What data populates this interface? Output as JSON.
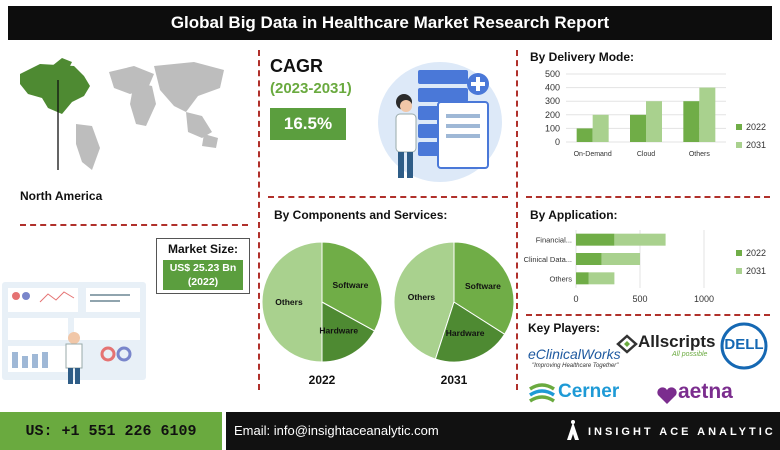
{
  "header": {
    "title": "Global Big Data in Healthcare Market Research Report"
  },
  "region": {
    "label": "North America"
  },
  "market_size": {
    "label": "Market Size:",
    "value": "US$ 25.23 Bn",
    "year": "(2022)"
  },
  "cagr": {
    "label": "CAGR",
    "period": "(2023-2031)",
    "value": "16.5%"
  },
  "colors": {
    "dark_green": "#4e8a32",
    "mid_green": "#70ad47",
    "light_green": "#a9d18e",
    "accent_red": "#b0302b"
  },
  "key_players": {
    "title": "Key Players:",
    "names": [
      "eClinicalWorks",
      "Allscripts",
      "DELL",
      "Cerner",
      "aetna"
    ],
    "taglines": {
      "eclinical": "\"Improving Healthcare Together\"",
      "allscripts": "All possible"
    }
  },
  "footer": {
    "phone": "US: +1 551 226 6109",
    "email": "Email: info@insightaceanalytic.com",
    "brand": "INSIGHT ACE ANALYTIC"
  },
  "chart_data": [
    {
      "type": "bar",
      "title": "By Delivery Mode:",
      "categories": [
        "On-Demand",
        "Cloud",
        "Others"
      ],
      "series": [
        {
          "name": "2022",
          "values": [
            100,
            200,
            300
          ]
        },
        {
          "name": "2031",
          "values": [
            200,
            300,
            400
          ]
        }
      ],
      "ylim": [
        0,
        500
      ],
      "yticks": [
        "0",
        "100",
        "200",
        "300",
        "400",
        "500"
      ],
      "legend": "right"
    },
    {
      "type": "bar",
      "orientation": "horizontal",
      "title": "By Application:",
      "categories": [
        "Financial...",
        "Clinical Data...",
        "Others"
      ],
      "series": [
        {
          "name": "2022",
          "values": [
            300,
            200,
            100
          ]
        },
        {
          "name": "2031",
          "values": [
            400,
            300,
            200
          ]
        }
      ],
      "xlim": [
        0,
        1000
      ],
      "xticks": [
        "0",
        "500",
        "1000"
      ],
      "legend": "right"
    },
    {
      "type": "pie",
      "title": "By Components and Services:",
      "year": "2022",
      "slices": [
        {
          "label": "Others",
          "value": 50
        },
        {
          "label": "Hardware",
          "value": 17
        },
        {
          "label": "Software",
          "value": 33
        }
      ]
    },
    {
      "type": "pie",
      "year": "2031",
      "slices": [
        {
          "label": "Others",
          "value": 45
        },
        {
          "label": "Hardware",
          "value": 21
        },
        {
          "label": "Software",
          "value": 34
        }
      ]
    }
  ]
}
